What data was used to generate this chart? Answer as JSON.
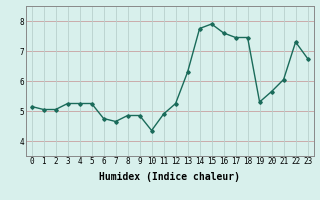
{
  "x": [
    0,
    1,
    2,
    3,
    4,
    5,
    6,
    7,
    8,
    9,
    10,
    11,
    12,
    13,
    14,
    15,
    16,
    17,
    18,
    19,
    20,
    21,
    22,
    23
  ],
  "y": [
    5.15,
    5.05,
    5.05,
    5.25,
    5.25,
    5.25,
    4.75,
    4.65,
    4.85,
    4.85,
    4.35,
    4.9,
    5.25,
    6.3,
    7.75,
    7.9,
    7.6,
    7.45,
    7.45,
    5.3,
    5.65,
    6.05,
    7.3,
    6.75
  ],
  "line_color": "#1a6b5a",
  "marker": "D",
  "marker_size": 1.8,
  "linewidth": 1.0,
  "bg_color": "#d8f0ec",
  "plot_bg_color": "#d8f0ec",
  "grid_color_h": "#c8a0a0",
  "grid_color_v": "#b8d0cc",
  "xlabel": "Humidex (Indice chaleur)",
  "ylim": [
    3.5,
    8.5
  ],
  "xlim": [
    -0.5,
    23.5
  ],
  "yticks": [
    4,
    5,
    6,
    7,
    8
  ],
  "xticks": [
    0,
    1,
    2,
    3,
    4,
    5,
    6,
    7,
    8,
    9,
    10,
    11,
    12,
    13,
    14,
    15,
    16,
    17,
    18,
    19,
    20,
    21,
    22,
    23
  ],
  "tick_fontsize": 5.5,
  "xlabel_fontsize": 7.0,
  "spine_color": "#888888"
}
